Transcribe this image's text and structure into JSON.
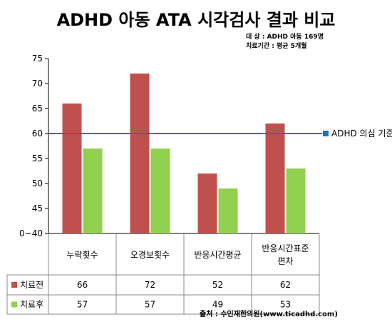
{
  "title": "ADHD 아동 ATA 시각검사 결과 비교",
  "meta": {
    "line1": "대      상 : ADHD 아동 169명",
    "line2": "치료기간 : 평균 5개월"
  },
  "source": "출처 : 수인재한의원(www.ticadhd.com)",
  "reference_line_label": "ADHD 의심 기준",
  "colors": {
    "before": "#c0504d",
    "after": "#92d050",
    "reference": "#1f6fbf"
  },
  "chart_data": {
    "type": "bar",
    "categories": [
      "누락횟수",
      "오경보횟수",
      "반응시간평균",
      "반응시간표준\n편차"
    ],
    "series": [
      {
        "name": "치료전",
        "values": [
          66,
          72,
          52,
          62
        ]
      },
      {
        "name": "치료후",
        "values": [
          57,
          57,
          49,
          53
        ]
      }
    ],
    "yticks": [
      "0~40",
      "45",
      "50",
      "55",
      "60",
      "65",
      "70",
      "75"
    ],
    "ylim": [
      40,
      75
    ],
    "reference_value": 60,
    "grid": false,
    "legend": "data-table"
  }
}
